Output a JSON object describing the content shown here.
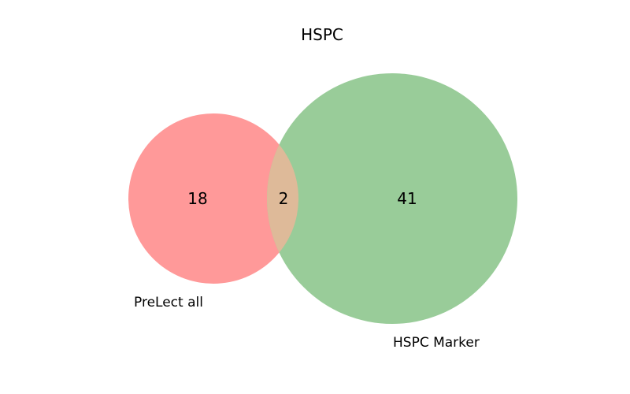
{
  "title": "HSPC",
  "sets": [
    {
      "label": "PreLect all",
      "color": "#ff9999"
    },
    {
      "label": "HSPC Marker",
      "color": "#99cc99"
    }
  ],
  "overlap_color": "#deba99",
  "counts": {
    "left_only": "18",
    "both": "2",
    "right_only": "41"
  }
}
